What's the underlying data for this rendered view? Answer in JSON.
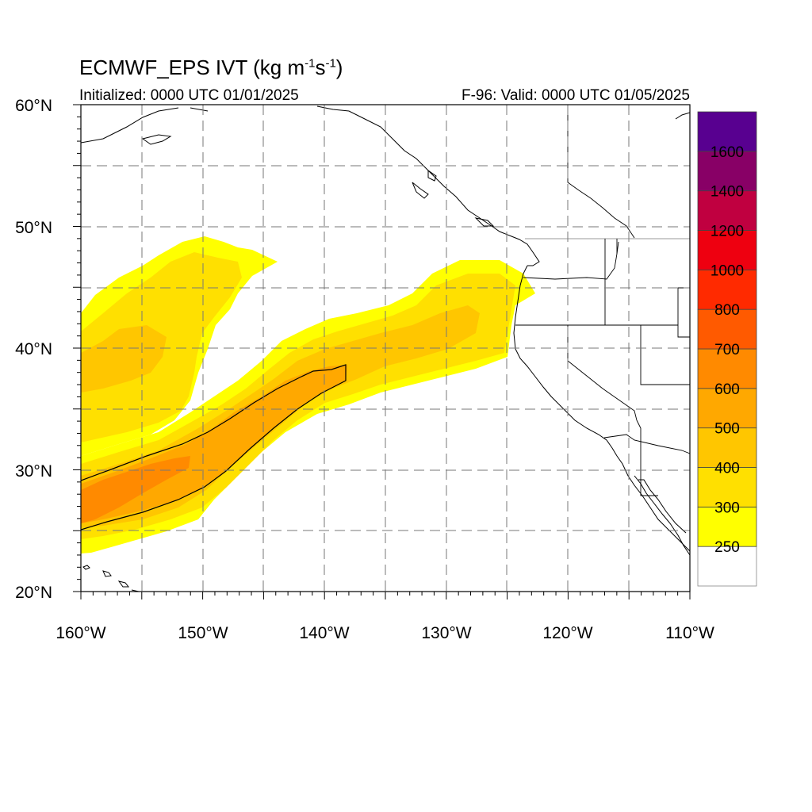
{
  "title": {
    "main_prefix": "ECMWF_EPS IVT (kg m",
    "sup1": "-1",
    "mid": "s",
    "sup2": "-1",
    "suffix": ")"
  },
  "subtitle_left": "Initialized: 0000 UTC 01/01/2025",
  "subtitle_right": "F-96: Valid: 0000 UTC 01/05/2025",
  "map": {
    "lon_range": [
      -160,
      -110
    ],
    "lat_range": [
      20,
      60
    ],
    "grid": true,
    "projection": "cylindrical-equidistant"
  },
  "lat_labels": [
    "60°N",
    "50°N",
    "40°N",
    "30°N",
    "20°N"
  ],
  "lon_labels": [
    "160°W",
    "150°W",
    "140°W",
    "130°W",
    "120°W",
    "110°W"
  ],
  "colorbar": {
    "labels": [
      "250",
      "300",
      "400",
      "500",
      "600",
      "700",
      "800",
      "1000",
      "1200",
      "1400",
      "1600"
    ],
    "colors": [
      "#ffffff",
      "#ffff00",
      "#ffe000",
      "#ffc600",
      "#ffa800",
      "#ff8a00",
      "#ff5a00",
      "#ff2a00",
      "#ee0010",
      "#c00040",
      "#880066",
      "#580090"
    ]
  }
}
